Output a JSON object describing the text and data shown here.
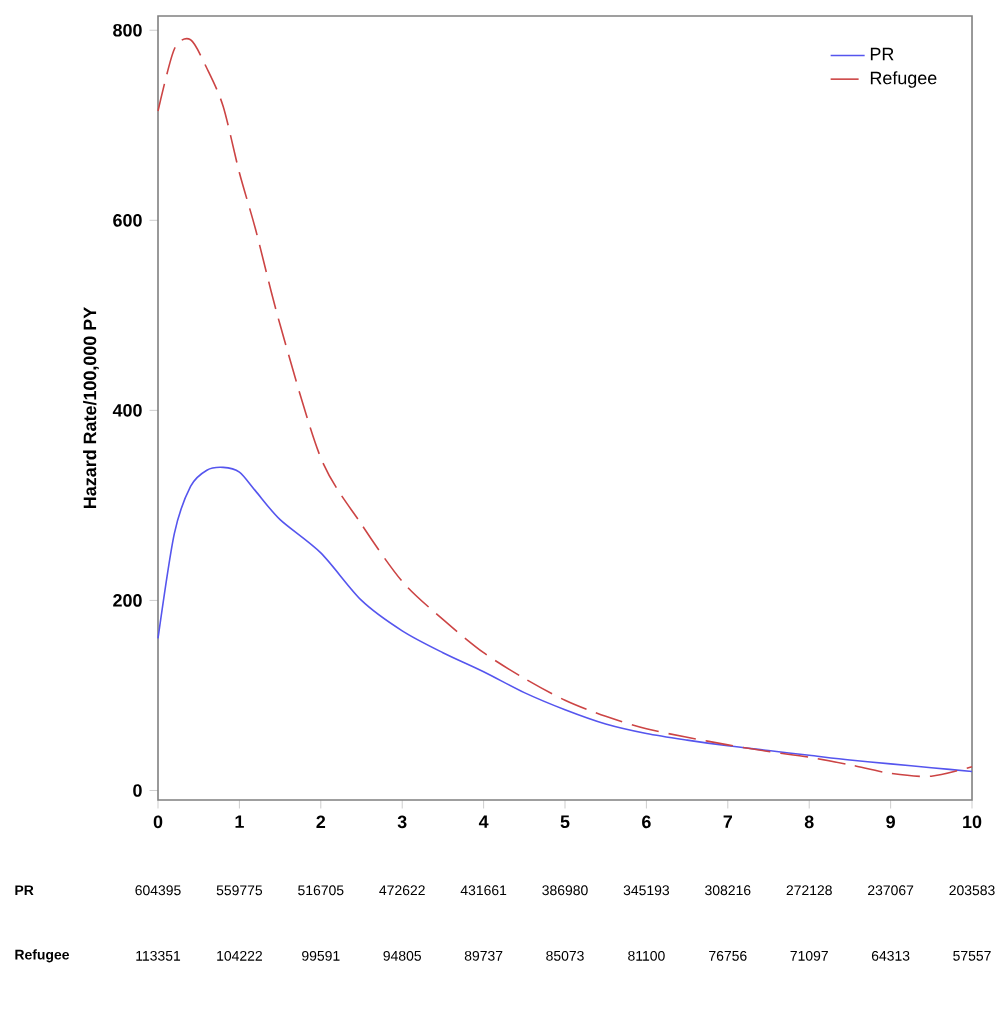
{
  "chart_data": {
    "type": "line",
    "ylabel": "Hazard Rate/100,000 PY",
    "x": [
      0,
      0.2,
      0.4,
      0.6,
      0.8,
      1,
      1.2,
      1.5,
      2,
      2.5,
      3,
      3.5,
      4,
      4.5,
      5,
      5.5,
      6,
      6.5,
      7,
      7.5,
      8,
      8.5,
      9,
      9.5,
      10
    ],
    "series": [
      {
        "name": "PR",
        "color": "#5555ee",
        "line_style": "solid",
        "values": [
          160,
          270,
          320,
          337,
          340,
          335,
          315,
          285,
          250,
          200,
          168,
          145,
          125,
          103,
          85,
          70,
          60,
          53,
          47,
          42,
          37,
          32,
          28,
          24,
          20
        ]
      },
      {
        "name": "Refugee",
        "color": "#cc4444",
        "line_style": "dashed",
        "values": [
          715,
          780,
          790,
          760,
          720,
          650,
          590,
          490,
          350,
          280,
          220,
          180,
          145,
          118,
          95,
          78,
          65,
          56,
          48,
          41,
          35,
          27,
          18,
          15,
          25
        ]
      }
    ],
    "xlim": [
      0,
      10
    ],
    "ylim": [
      -10,
      815
    ],
    "xticks": [
      0,
      1,
      2,
      3,
      4,
      5,
      6,
      7,
      8,
      9,
      10
    ],
    "yticks": [
      0,
      200,
      400,
      600,
      800
    ],
    "legend": "top right",
    "grid": false,
    "annotations": [
      "PR",
      "604395",
      "559775",
      "516705",
      "472622",
      "431661",
      "386980",
      "345193",
      "308216",
      "272128",
      "237067",
      "203583",
      "Refugee",
      "113351",
      "104222",
      "99591",
      "94805",
      "89737",
      "85073",
      "81100",
      "76756",
      "71097",
      "64313",
      "57557"
    ]
  }
}
